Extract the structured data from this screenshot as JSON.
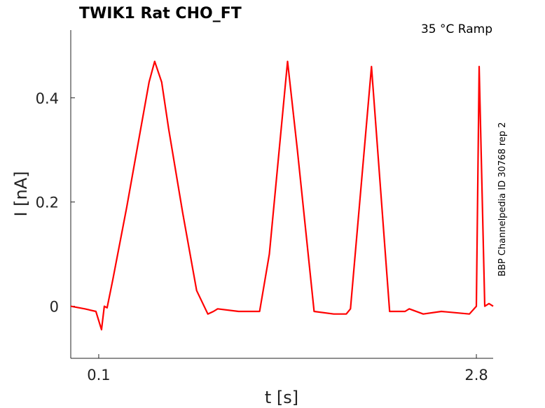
{
  "chart_data": {
    "type": "line",
    "title": "TWIK1  Rat  CHO_FT",
    "subtitle": "35 °C  Ramp",
    "side_note": "BBP Channelpedia ID 30768 rep 2",
    "xlabel": "t [s]",
    "ylabel": "I [nA]",
    "xlim": [
      -0.1,
      2.92
    ],
    "ylim": [
      -0.1,
      0.53
    ],
    "x_ticks": [
      {
        "value": 0.1,
        "label": "0.1"
      },
      {
        "value": 2.8,
        "label": "2.8"
      }
    ],
    "y_ticks": [
      {
        "value": 0,
        "label": "0"
      },
      {
        "value": 0.2,
        "label": "0.2"
      },
      {
        "value": 0.4,
        "label": "0.4"
      }
    ],
    "grid": false,
    "color": "#ff0000",
    "series": [
      {
        "x": [
          -0.1,
          0.0,
          0.08,
          0.12,
          0.14,
          0.16,
          0.2,
          0.3,
          0.4,
          0.46,
          0.5,
          0.55,
          0.6,
          0.7,
          0.8,
          0.88,
          0.92,
          0.95,
          1.1,
          1.25,
          1.32,
          1.45,
          1.52,
          1.64,
          1.78,
          1.87,
          1.9,
          2.05,
          2.18,
          2.29,
          2.32,
          2.42,
          2.55,
          2.75,
          2.8,
          2.82,
          2.86,
          2.89,
          2.92
        ],
        "y": [
          0.0,
          -0.005,
          -0.01,
          -0.045,
          0.0,
          -0.003,
          0.05,
          0.19,
          0.34,
          0.43,
          0.47,
          0.43,
          0.34,
          0.18,
          0.03,
          -0.015,
          -0.01,
          -0.005,
          -0.01,
          -0.01,
          0.1,
          0.47,
          0.3,
          -0.01,
          -0.015,
          -0.015,
          -0.005,
          0.46,
          -0.01,
          -0.01,
          -0.005,
          -0.015,
          -0.01,
          -0.015,
          0.0,
          0.46,
          0.0,
          0.005,
          0.0
        ]
      }
    ]
  }
}
